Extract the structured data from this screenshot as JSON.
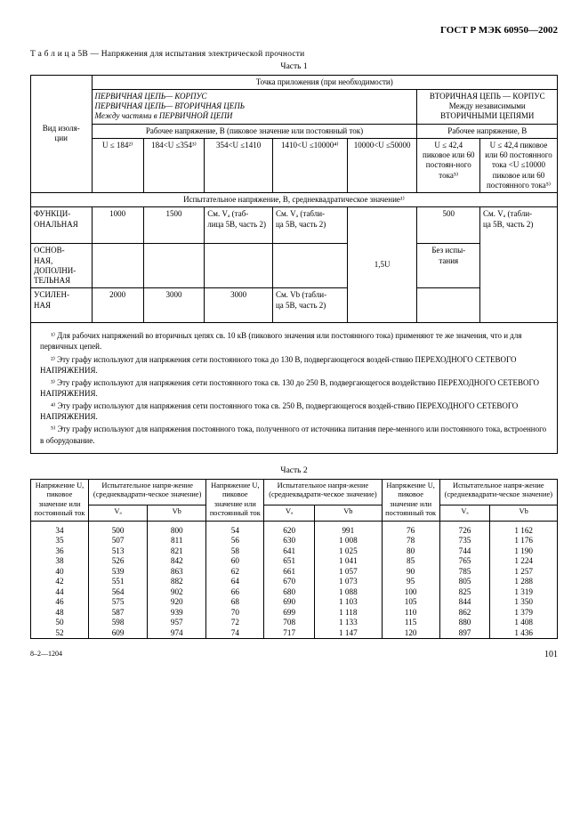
{
  "doc": {
    "standard": "ГОСТ Р МЭК 60950—2002",
    "table_label": "Т а б л и ц а 5В — Напряжения для испытания электрической прочности",
    "part1": "Часть 1",
    "part2": "Часть 2",
    "footer_left": "8–2—1204",
    "page": "101"
  },
  "t1": {
    "row_label": "Вид изоля-\nции",
    "app_header": "Точка приложения (при необходимости)",
    "primary_block": "ПЕРВИЧНАЯ ЦЕПЬ— КОРПУС\nПЕРВИЧНАЯ ЦЕПЬ— ВТОРИЧНАЯ ЦЕПЬ\nМежду частями в ПЕРВИЧНОЙ ЦЕПИ",
    "secondary_block": "ВТОРИЧНАЯ ЦЕПЬ — КОРПУС\nМежду независимыми ВТОРИЧНЫМИ ЦЕПЯМИ",
    "work_voltage_primary": "Рабочее напряжение, В (пиковое значение или постоянный ток)",
    "work_voltage_secondary": "Рабочее напряжение, В",
    "col1": "U ≤ 184²⁾",
    "col2": "184<U ≤354³⁾",
    "col3": "354<U ≤1410",
    "col4": "1410<U ≤10000⁴⁾",
    "col5": "10000<U ≤50000",
    "col6": "U ≤ 42,4 пиковое или 60 постоян-ного тока⁵⁾",
    "col7": "U ≤ 42,4 пиковое или 60 постоянного тока  <U ≤10000 пиковое или 60 постоянного тока⁵⁾",
    "test_voltage_header": "Испытательное напряжение, В, среднеквадратическое значение¹⁾",
    "r1_label": "ФУНКЦИ-\nОНАЛЬНАЯ",
    "r1_c1": "1000",
    "r1_c2": "1500",
    "r1_c3": "См. Vₐ (таб-\nлица 5В, часть 2)",
    "r1_c4": "См. Vₐ (табли-\nца 5В, часть 2)",
    "r1_c6": "500",
    "r1_c7": "См. Vₐ (табли-\nца 5В, часть 2)",
    "r2_label": "ОСНОВ-\nНАЯ, ДОПОЛНИ-\nТЕЛЬНАЯ",
    "r2_c5": "1,5U",
    "r2_c6": "Без испы-\nтания",
    "r3_label": "УСИЛЕН-\nНАЯ",
    "r3_c1": "2000",
    "r3_c2": "3000",
    "r3_c3": "3000",
    "r3_c4": "См. Vb (табли-\nца 5В, часть 2)",
    "note1": "¹⁾ Для рабочих напряжений во вторичных цепях св. 10 кВ (пикового значения или постоянного тока) применяют те же значения, что и для первичных цепей.",
    "note2": "²⁾ Эту графу используют для напряжения сети постоянного тока до 130 В, подвергающегося воздей-ствию ПЕРЕХОДНОГО СЕТЕВОГО НАПРЯЖЕНИЯ.",
    "note3": "³⁾ Эту графу используют для напряжения сети постоянного тока св. 130 до 250 В, подвергающегося воздействию ПЕРЕХОДНОГО СЕТЕВОГО НАПРЯЖЕНИЯ.",
    "note4": "⁴⁾ Эту графу используют для напряжения сети постоянного тока св. 250 В, подвергающегося воздей-ствию ПЕРЕХОДНОГО СЕТЕВОГО НАПРЯЖЕНИЯ.",
    "note5": "⁵⁾ Эту графу используют для напряжения постоянного тока, полученного от источника питания пере-менного или постоянного тока, встроенного в оборудование."
  },
  "t2": {
    "h_u": "Напряжение U, пиковое значение или постоянный ток",
    "h_test": "Испытательное напря-жение (среднеквадрати-ческое значение)",
    "h_va": "Vₐ",
    "h_vb": "Vb",
    "rows": [
      {
        "u1": "34",
        "va1": "500",
        "vb1": "800",
        "u2": "54",
        "va2": "620",
        "vb2": "991",
        "u3": "76",
        "va3": "726",
        "vb3": "1 162"
      },
      {
        "u1": "35",
        "va1": "507",
        "vb1": "811",
        "u2": "56",
        "va2": "630",
        "vb2": "1 008",
        "u3": "78",
        "va3": "735",
        "vb3": "1 176"
      },
      {
        "u1": "36",
        "va1": "513",
        "vb1": "821",
        "u2": "58",
        "va2": "641",
        "vb2": "1 025",
        "u3": "80",
        "va3": "744",
        "vb3": "1 190"
      },
      {
        "u1": "38",
        "va1": "526",
        "vb1": "842",
        "u2": "60",
        "va2": "651",
        "vb2": "1 041",
        "u3": "85",
        "va3": "765",
        "vb3": "1 224"
      },
      {
        "u1": "40",
        "va1": "539",
        "vb1": "863",
        "u2": "62",
        "va2": "661",
        "vb2": "1 057",
        "u3": "90",
        "va3": "785",
        "vb3": "1 257"
      },
      {
        "u1": "42",
        "va1": "551",
        "vb1": "882",
        "u2": "64",
        "va2": "670",
        "vb2": "1 073",
        "u3": "95",
        "va3": "805",
        "vb3": "1 288"
      },
      {
        "u1": "44",
        "va1": "564",
        "vb1": "902",
        "u2": "66",
        "va2": "680",
        "vb2": "1 088",
        "u3": "100",
        "va3": "825",
        "vb3": "1 319"
      },
      {
        "u1": "46",
        "va1": "575",
        "vb1": "920",
        "u2": "68",
        "va2": "690",
        "vb2": "1 103",
        "u3": "105",
        "va3": "844",
        "vb3": "1 350"
      },
      {
        "u1": "48",
        "va1": "587",
        "vb1": "939",
        "u2": "70",
        "va2": "699",
        "vb2": "1 118",
        "u3": "110",
        "va3": "862",
        "vb3": "1 379"
      },
      {
        "u1": "50",
        "va1": "598",
        "vb1": "957",
        "u2": "72",
        "va2": "708",
        "vb2": "1 133",
        "u3": "115",
        "va3": "880",
        "vb3": "1 408"
      },
      {
        "u1": "52",
        "va1": "609",
        "vb1": "974",
        "u2": "74",
        "va2": "717",
        "vb2": "1 147",
        "u3": "120",
        "va3": "897",
        "vb3": "1 436"
      }
    ]
  }
}
